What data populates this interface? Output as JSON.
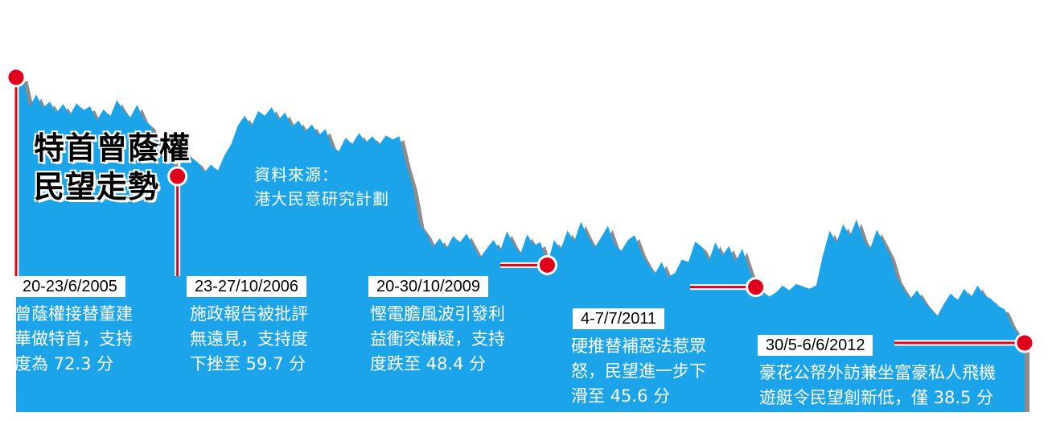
{
  "title": {
    "line1": "特首曾蔭權",
    "line2": "民望走勢"
  },
  "source": {
    "line1": "資料來源：",
    "line2": "港大民意研究計劃"
  },
  "annotations": [
    {
      "date": "20-23/6/2005",
      "lines": [
        "曾蔭權接替董建",
        "華做特首，支持",
        "度為 72.3 分"
      ]
    },
    {
      "date": "23-27/10/2006",
      "lines": [
        "施政報告被批評",
        "無遠見，支持度",
        "下挫至 59.7 分"
      ]
    },
    {
      "date": "20-30/10/2009",
      "lines": [
        "慳電膽風波引發利",
        "益衝突嫌疑，支持",
        "度跌至 48.4 分"
      ]
    },
    {
      "date": "4-7/7/2011",
      "lines": [
        "硬推替補惡法惹眾",
        "怒，民望進一步下",
        "滑至 45.6 分"
      ]
    },
    {
      "date": "30/5-6/6/2012",
      "lines": [
        "豪花公帑外訪兼坐富豪私人飛機",
        "遊艇令民望創新低，僅 38.5 分"
      ]
    }
  ],
  "colors": {
    "area": "#1ba4ea",
    "marker": "#e1001c",
    "leader": "#e1001c",
    "shadow": "#8c8c8c"
  },
  "chart_data": {
    "type": "area",
    "title": "特首曾蔭權民望走勢",
    "xlabel": "",
    "ylabel": "",
    "period": [
      "2005-06",
      "2012-06"
    ],
    "highlighted_points": [
      {
        "date": "20-23/6/2005",
        "value": 72.3
      },
      {
        "date": "23-27/10/2006",
        "value": 59.7
      },
      {
        "date": "20-30/10/2009",
        "value": 48.4
      },
      {
        "date": "4-7/7/2011",
        "value": 45.6
      },
      {
        "date": "30/5-6/6/2012",
        "value": 38.5
      }
    ],
    "series_values": [
      72.3,
      72.3,
      68.5,
      70.1,
      68.4,
      69.2,
      67.8,
      68.9,
      67.5,
      69.0,
      68.1,
      68.6,
      66.8,
      68.2,
      67.3,
      69.4,
      68.0,
      67.2,
      68.8,
      66.9,
      66.2,
      63.4,
      64.5,
      62.8,
      59.7,
      63.0,
      62.1,
      61.5,
      60.2,
      61.2,
      60.4,
      62.4,
      63.8,
      66.2,
      67.4,
      66.1,
      68.0,
      67.4,
      68.5,
      66.9,
      67.8,
      66.0,
      66.8,
      65.4,
      66.3,
      64.9,
      65.7,
      63.4,
      62.9,
      64.6,
      63.8,
      65.2,
      64.0,
      64.8,
      63.7,
      64.9,
      64.4,
      64.8,
      61.2,
      58.3,
      53.6,
      52.4,
      50.7,
      51.8,
      50.5,
      52.1,
      51.3,
      52.4,
      50.8,
      49.3,
      50.5,
      51.6,
      50.2,
      52.7,
      51.0,
      49.8,
      52.3,
      50.9,
      51.3,
      48.4,
      51.6,
      50.4,
      52.8,
      51.4,
      53.9,
      52.1,
      50.6,
      51.9,
      53.4,
      51.0,
      50.2,
      51.6,
      52.2,
      49.9,
      48.4,
      47.3,
      48.8,
      46.9,
      47.4,
      49.1,
      48.8,
      51.4,
      50.7,
      48.9,
      51.3,
      49.6,
      50.8,
      48.8,
      50.5,
      47.9,
      45.6,
      45.1,
      44.4,
      44.9,
      45.8,
      45.2,
      46.0,
      45.7,
      45.4,
      45.8,
      49.7,
      52.8,
      51.2,
      53.6,
      52.1,
      54.2,
      51.7,
      50.4,
      52.9,
      51.3,
      49.6,
      46.7,
      45.3,
      44.1,
      45.2,
      43.8,
      42.8,
      41.9,
      43.5,
      44.8,
      43.9,
      45.4,
      44.3,
      45.8,
      44.5,
      44.1,
      43.2,
      42.8,
      40.9,
      39.6,
      38.5
    ]
  }
}
